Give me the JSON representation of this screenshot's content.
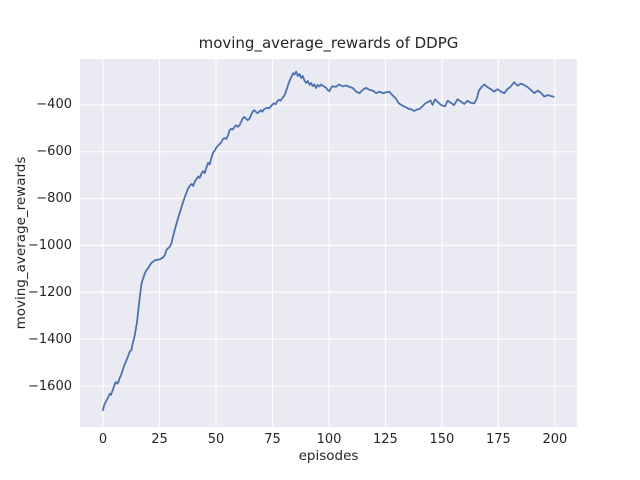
{
  "figure": {
    "background": "#ffffff"
  },
  "chart_data": {
    "type": "line",
    "title": "moving_average_rewards of DDPG",
    "xlabel": "episodes",
    "ylabel": "moving_average_rewards",
    "xlim": [
      -10.2,
      209.8
    ],
    "ylim": [
      -1775,
      -204
    ],
    "grid": true,
    "legend": false,
    "x_ticks": [
      0,
      25,
      50,
      75,
      100,
      125,
      150,
      175,
      200
    ],
    "x_tick_labels": [
      "0",
      "25",
      "50",
      "75",
      "100",
      "125",
      "150",
      "175",
      "200"
    ],
    "y_ticks": [
      -400,
      -600,
      -800,
      -1000,
      -1200,
      -1400,
      -1600
    ],
    "y_tick_labels": [
      "−400",
      "−600",
      "−800",
      "−1000",
      "−1200",
      "−1400",
      "−1600"
    ],
    "style": {
      "line_color": "#4c72b0",
      "axes_background": "#eaeaf2",
      "grid_color": "#ffffff",
      "text_color": "#262626"
    },
    "series": [
      {
        "name": "moving_average_rewards",
        "points": [
          [
            0,
            -1703
          ],
          [
            0.5,
            -1682
          ],
          [
            1.2,
            -1668
          ],
          [
            2,
            -1653
          ],
          [
            2.7,
            -1640
          ],
          [
            3,
            -1633
          ],
          [
            3.5,
            -1638
          ],
          [
            4.2,
            -1620
          ],
          [
            4.9,
            -1601
          ],
          [
            5.3,
            -1589
          ],
          [
            5.8,
            -1583
          ],
          [
            6.3,
            -1590
          ],
          [
            6.8,
            -1584
          ],
          [
            7.3,
            -1568
          ],
          [
            8,
            -1553
          ],
          [
            8.7,
            -1532
          ],
          [
            9.4,
            -1511
          ],
          [
            10.1,
            -1496
          ],
          [
            11,
            -1475
          ],
          [
            11.9,
            -1452
          ],
          [
            12.5,
            -1448
          ],
          [
            13.1,
            -1420
          ],
          [
            14,
            -1385
          ],
          [
            15,
            -1330
          ],
          [
            15.7,
            -1270
          ],
          [
            16.3,
            -1218
          ],
          [
            17,
            -1166
          ],
          [
            17.5,
            -1148
          ],
          [
            18.5,
            -1119
          ],
          [
            19.3,
            -1105
          ],
          [
            20,
            -1097
          ],
          [
            20.8,
            -1083
          ],
          [
            21.5,
            -1074
          ],
          [
            22.2,
            -1069
          ],
          [
            23,
            -1063
          ],
          [
            23.7,
            -1062
          ],
          [
            24.4,
            -1060
          ],
          [
            25.2,
            -1059
          ],
          [
            25.9,
            -1055
          ],
          [
            26.6,
            -1051
          ],
          [
            27.4,
            -1041
          ],
          [
            28.1,
            -1019
          ],
          [
            28.8,
            -1012
          ],
          [
            29.6,
            -1005
          ],
          [
            30.3,
            -990
          ],
          [
            31,
            -960
          ],
          [
            32,
            -925
          ],
          [
            33,
            -890
          ],
          [
            34,
            -858
          ],
          [
            35,
            -828
          ],
          [
            36.2,
            -793
          ],
          [
            37.7,
            -756
          ],
          [
            38.4,
            -745
          ],
          [
            39.2,
            -737
          ],
          [
            39.9,
            -746
          ],
          [
            40.6,
            -727
          ],
          [
            42.1,
            -705
          ],
          [
            42.8,
            -712
          ],
          [
            43.6,
            -693
          ],
          [
            44.3,
            -683
          ],
          [
            45,
            -691
          ],
          [
            45.7,
            -669
          ],
          [
            46.5,
            -647
          ],
          [
            47.2,
            -654
          ],
          [
            48,
            -625
          ],
          [
            48.7,
            -603
          ],
          [
            49.4,
            -596
          ],
          [
            50.2,
            -582
          ],
          [
            50.9,
            -574
          ],
          [
            51.6,
            -567
          ],
          [
            52.3,
            -560
          ],
          [
            53.1,
            -545
          ],
          [
            53.8,
            -542
          ],
          [
            54.5,
            -545
          ],
          [
            55.3,
            -531
          ],
          [
            56,
            -509
          ],
          [
            56.7,
            -502
          ],
          [
            57.4,
            -505
          ],
          [
            58.2,
            -494
          ],
          [
            58.9,
            -487
          ],
          [
            59.6,
            -494
          ],
          [
            60.4,
            -487
          ],
          [
            61.1,
            -473
          ],
          [
            61.8,
            -458
          ],
          [
            62.5,
            -451
          ],
          [
            63.3,
            -458
          ],
          [
            64,
            -465
          ],
          [
            64.7,
            -461
          ],
          [
            65.5,
            -444
          ],
          [
            66.2,
            -429
          ],
          [
            66.9,
            -422
          ],
          [
            67.6,
            -429
          ],
          [
            68.4,
            -436
          ],
          [
            69.1,
            -429
          ],
          [
            69.8,
            -422
          ],
          [
            70.6,
            -429
          ],
          [
            71.3,
            -418
          ],
          [
            72,
            -415
          ],
          [
            72.7,
            -412
          ],
          [
            73.5,
            -415
          ],
          [
            74.2,
            -407
          ],
          [
            74.9,
            -400
          ],
          [
            75.6,
            -393
          ],
          [
            76.4,
            -397
          ],
          [
            77.1,
            -385
          ],
          [
            77.8,
            -378
          ],
          [
            78.6,
            -382
          ],
          [
            79.3,
            -371
          ],
          [
            80,
            -364
          ],
          [
            80.7,
            -350
          ],
          [
            81.4,
            -330
          ],
          [
            82.1,
            -310
          ],
          [
            82.8,
            -292
          ],
          [
            83.5,
            -278
          ],
          [
            84.2,
            -264
          ],
          [
            84.8,
            -270
          ],
          [
            85.5,
            -258
          ],
          [
            86.2,
            -277
          ],
          [
            87,
            -268
          ],
          [
            87.7,
            -285
          ],
          [
            88.4,
            -276
          ],
          [
            89.2,
            -298
          ],
          [
            89.9,
            -306
          ],
          [
            90.6,
            -298
          ],
          [
            91.4,
            -314
          ],
          [
            92.1,
            -306
          ],
          [
            92.8,
            -320
          ],
          [
            93.6,
            -313
          ],
          [
            94.3,
            -328
          ],
          [
            95,
            -315
          ],
          [
            95.8,
            -321
          ],
          [
            96.5,
            -313
          ],
          [
            97.6,
            -320
          ],
          [
            98.7,
            -326
          ],
          [
            99.4,
            -336
          ],
          [
            100.2,
            -341
          ],
          [
            100.9,
            -328
          ],
          [
            101.6,
            -320
          ],
          [
            103,
            -323
          ],
          [
            104.6,
            -313
          ],
          [
            106,
            -321
          ],
          [
            107.6,
            -317
          ],
          [
            109,
            -323
          ],
          [
            110.5,
            -328
          ],
          [
            112,
            -343
          ],
          [
            113.5,
            -350
          ],
          [
            115,
            -336
          ],
          [
            116.4,
            -327
          ],
          [
            117.9,
            -336
          ],
          [
            119.4,
            -339
          ],
          [
            120.9,
            -350
          ],
          [
            122.4,
            -343
          ],
          [
            123.8,
            -350
          ],
          [
            125.3,
            -346
          ],
          [
            126.7,
            -344
          ],
          [
            128.1,
            -358
          ],
          [
            129.5,
            -372
          ],
          [
            131,
            -394
          ],
          [
            132.4,
            -402
          ],
          [
            133.8,
            -409
          ],
          [
            135.4,
            -417
          ],
          [
            136.8,
            -421
          ],
          [
            137.7,
            -426
          ],
          [
            138.8,
            -420
          ],
          [
            140.2,
            -417
          ],
          [
            141.6,
            -404
          ],
          [
            142.7,
            -393
          ],
          [
            143.8,
            -388
          ],
          [
            144.9,
            -381
          ],
          [
            145.9,
            -400
          ],
          [
            147,
            -376
          ],
          [
            148.1,
            -387
          ],
          [
            149.2,
            -397
          ],
          [
            150.3,
            -404
          ],
          [
            151.4,
            -406
          ],
          [
            152.5,
            -382
          ],
          [
            153.9,
            -391
          ],
          [
            155.4,
            -401
          ],
          [
            156.9,
            -376
          ],
          [
            158.4,
            -386
          ],
          [
            159.9,
            -396
          ],
          [
            161.3,
            -382
          ],
          [
            162.8,
            -391
          ],
          [
            164.3,
            -394
          ],
          [
            165.4,
            -374
          ],
          [
            166.4,
            -338
          ],
          [
            167.5,
            -325
          ],
          [
            168.7,
            -313
          ],
          [
            170.2,
            -324
          ],
          [
            171.7,
            -333
          ],
          [
            173.1,
            -343
          ],
          [
            174.6,
            -333
          ],
          [
            176.1,
            -343
          ],
          [
            177.6,
            -350
          ],
          [
            179,
            -333
          ],
          [
            180.5,
            -321
          ],
          [
            182,
            -303
          ],
          [
            183.5,
            -318
          ],
          [
            185,
            -309
          ],
          [
            186.4,
            -315
          ],
          [
            187.9,
            -324
          ],
          [
            189.4,
            -336
          ],
          [
            190.9,
            -350
          ],
          [
            192.4,
            -339
          ],
          [
            193.8,
            -348
          ],
          [
            195.3,
            -365
          ],
          [
            196.8,
            -358
          ],
          [
            198.3,
            -362
          ],
          [
            199.5,
            -365
          ]
        ]
      }
    ]
  }
}
